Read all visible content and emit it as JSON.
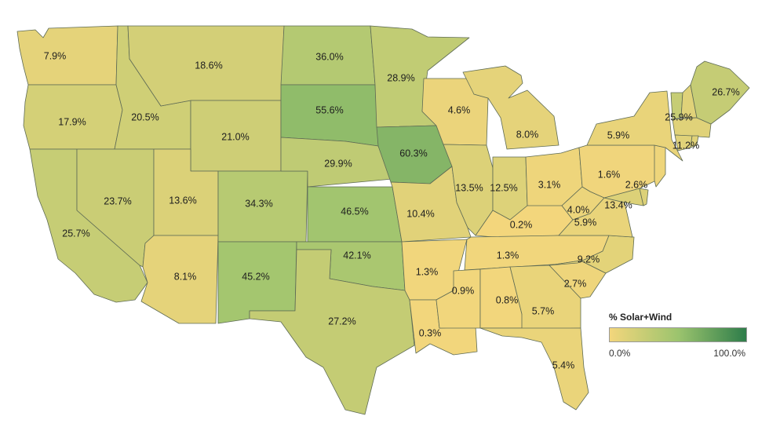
{
  "map": {
    "scale": {
      "min_color": "#f3d67c",
      "mid_color": "#9cc46e",
      "max_color": "#2e7d4a",
      "max_value": 100
    },
    "states": [
      {
        "id": "WA",
        "value": 7.9,
        "label": "7.9%"
      },
      {
        "id": "OR",
        "value": 17.9,
        "label": "17.9%"
      },
      {
        "id": "CA",
        "value": 25.7,
        "label": "25.7%"
      },
      {
        "id": "ID",
        "value": 20.5,
        "label": "20.5%"
      },
      {
        "id": "NV",
        "value": 23.7,
        "label": "23.7%"
      },
      {
        "id": "MT",
        "value": 18.6,
        "label": "18.6%"
      },
      {
        "id": "WY",
        "value": 21.0,
        "label": "21.0%"
      },
      {
        "id": "UT",
        "value": 13.6,
        "label": "13.6%"
      },
      {
        "id": "AZ",
        "value": 8.1,
        "label": "8.1%"
      },
      {
        "id": "CO",
        "value": 34.3,
        "label": "34.3%"
      },
      {
        "id": "NM",
        "value": 45.2,
        "label": "45.2%"
      },
      {
        "id": "ND",
        "value": 36.0,
        "label": "36.0%"
      },
      {
        "id": "SD",
        "value": 55.6,
        "label": "55.6%"
      },
      {
        "id": "NE",
        "value": 29.9,
        "label": "29.9%"
      },
      {
        "id": "KS",
        "value": 46.5,
        "label": "46.5%"
      },
      {
        "id": "OK",
        "value": 42.1,
        "label": "42.1%"
      },
      {
        "id": "TX",
        "value": 27.2,
        "label": "27.2%"
      },
      {
        "id": "MN",
        "value": 28.9,
        "label": "28.9%"
      },
      {
        "id": "IA",
        "value": 60.3,
        "label": "60.3%"
      },
      {
        "id": "MO",
        "value": 10.4,
        "label": "10.4%"
      },
      {
        "id": "AR",
        "value": 1.3,
        "label": "1.3%"
      },
      {
        "id": "LA",
        "value": 0.3,
        "label": "0.3%"
      },
      {
        "id": "WI",
        "value": 4.6,
        "label": "4.6%"
      },
      {
        "id": "IL",
        "value": 13.5,
        "label": "13.5%"
      },
      {
        "id": "MI",
        "value": 8.0,
        "label": "8.0%"
      },
      {
        "id": "IN",
        "value": 12.5,
        "label": "12.5%"
      },
      {
        "id": "OH",
        "value": 3.1,
        "label": "3.1%"
      },
      {
        "id": "KY",
        "value": 0.2,
        "label": "0.2%"
      },
      {
        "id": "TN",
        "value": 1.3,
        "label": "1.3%"
      },
      {
        "id": "MS",
        "value": 0.9,
        "label": "0.9%"
      },
      {
        "id": "AL",
        "value": 0.8,
        "label": "0.8%"
      },
      {
        "id": "GA",
        "value": 5.7,
        "label": "5.7%"
      },
      {
        "id": "FL",
        "value": 5.4,
        "label": "5.4%"
      },
      {
        "id": "SC",
        "value": 2.7,
        "label": "2.7%"
      },
      {
        "id": "NC",
        "value": 9.2,
        "label": "9.2%"
      },
      {
        "id": "VA",
        "value": 5.9,
        "label": "5.9%"
      },
      {
        "id": "WV",
        "value": 4.0,
        "label": "4.0%"
      },
      {
        "id": "MD",
        "value": 13.4,
        "label": "13.4%"
      },
      {
        "id": "DE",
        "value": 13.4,
        "label": ""
      },
      {
        "id": "PA",
        "value": 1.6,
        "label": "1.6%"
      },
      {
        "id": "NJ",
        "value": 2.6,
        "label": "2.6%"
      },
      {
        "id": "NY",
        "value": 5.9,
        "label": "5.9%"
      },
      {
        "id": "VT",
        "value": 25.9,
        "label": "25.9%"
      },
      {
        "id": "NH",
        "value": 11.2,
        "label": "11.2%"
      },
      {
        "id": "MA",
        "value": 11.2,
        "label": ""
      },
      {
        "id": "CT",
        "value": 11.2,
        "label": ""
      },
      {
        "id": "RI",
        "value": 11.2,
        "label": ""
      },
      {
        "id": "ME",
        "value": 26.7,
        "label": "26.7%"
      }
    ]
  },
  "legend": {
    "title": "% Solar+Wind",
    "min_label": "0.0%",
    "max_label": "100.0%"
  }
}
